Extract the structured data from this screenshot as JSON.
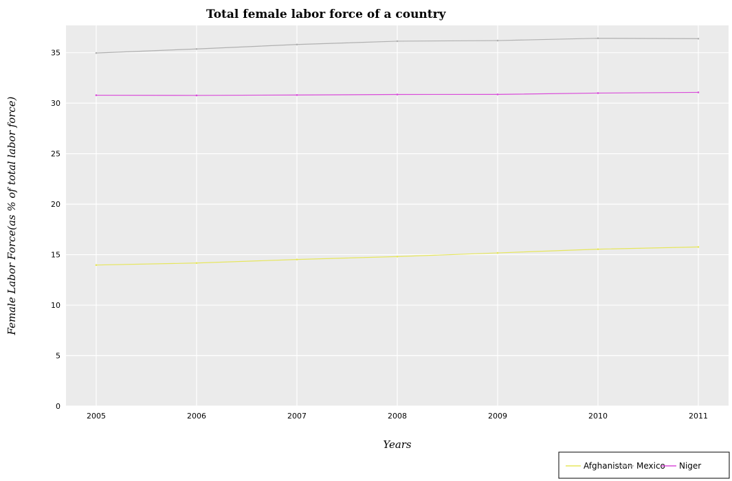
{
  "chart_data": {
    "type": "line",
    "title": "Total female labor force of a country",
    "xlabel": "Years",
    "ylabel": "Female Labor Force(as % of total labor force)",
    "categories": [
      "2005",
      "2006",
      "2007",
      "2008",
      "2009",
      "2010",
      "2011"
    ],
    "yticks": [
      "0",
      "5",
      "10",
      "15",
      "20",
      "25",
      "30",
      "35"
    ],
    "ylim": [
      0,
      37.7
    ],
    "grid": true,
    "legend_position": "bottom-right",
    "series": [
      {
        "name": "Afghanistan",
        "color": "#e6e65c",
        "values": [
          13.97,
          14.17,
          14.52,
          14.81,
          15.17,
          15.54,
          15.76
        ]
      },
      {
        "name": "Mexico",
        "color": "#b0b0b0",
        "values": [
          34.97,
          35.37,
          35.81,
          36.14,
          36.2,
          36.43,
          36.39
        ]
      },
      {
        "name": "Niger",
        "color": "#d94ad9",
        "values": [
          30.79,
          30.77,
          30.81,
          30.86,
          30.87,
          31.0,
          31.07
        ]
      }
    ]
  }
}
